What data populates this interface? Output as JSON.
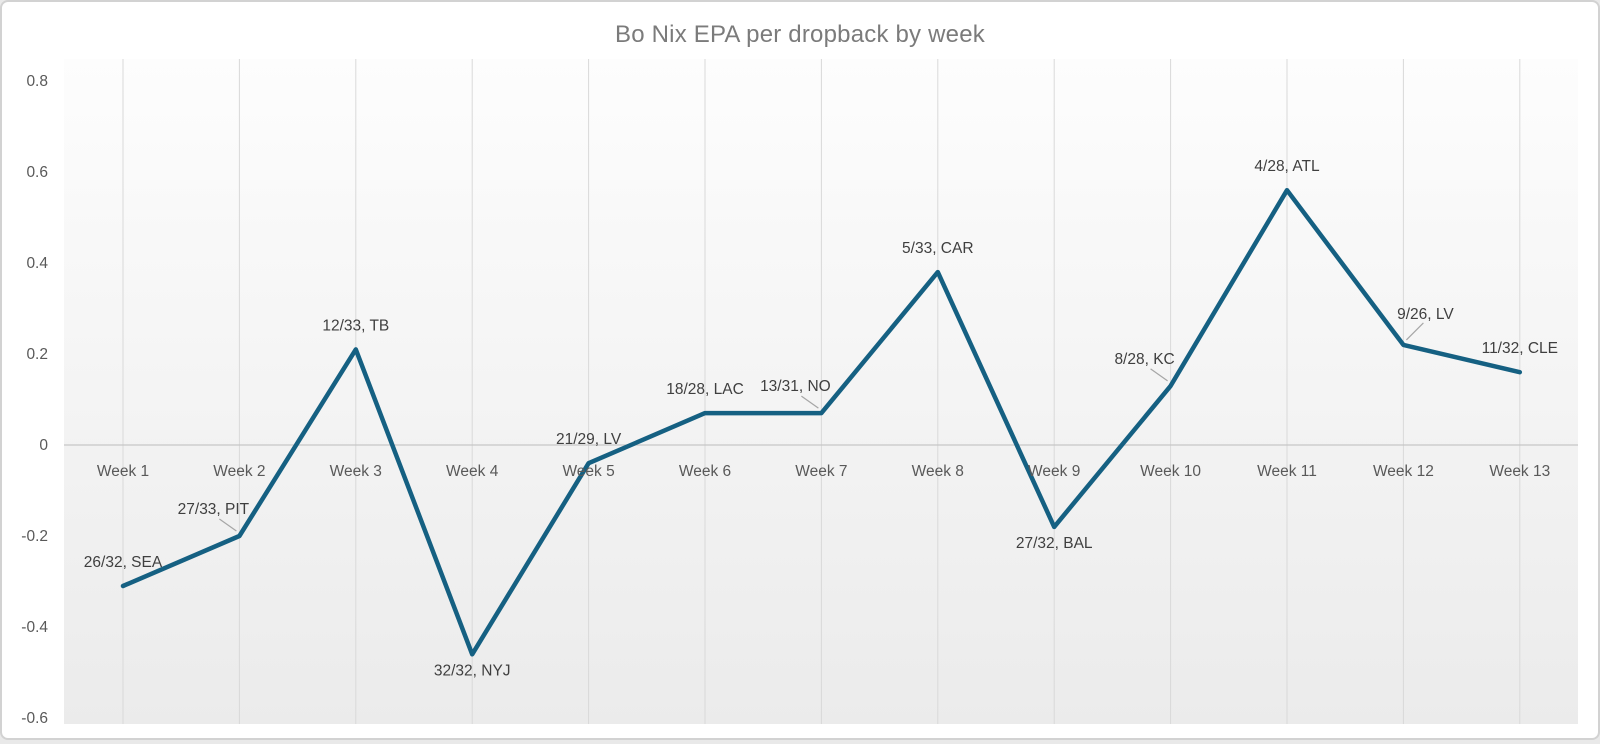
{
  "chart_data": {
    "type": "line",
    "title": "Bo Nix EPA per dropback by week",
    "xlabel": "",
    "ylabel": "",
    "categories": [
      "Week 1",
      "Week 2",
      "Week 3",
      "Week 4",
      "Week 5",
      "Week 6",
      "Week 7",
      "Week 8",
      "Week 9",
      "Week 10",
      "Week 11",
      "Week 12",
      "Week 13"
    ],
    "values": [
      -0.31,
      -0.2,
      0.21,
      -0.46,
      -0.04,
      0.07,
      0.07,
      0.38,
      -0.18,
      0.13,
      0.56,
      0.22,
      0.16
    ],
    "point_labels": [
      "26/32, SEA",
      "27/33, PIT",
      "12/33, TB",
      "32/32, NYJ",
      "21/29, LV",
      "18/28, LAC",
      "13/31, NO",
      "5/33, CAR",
      "27/32, BAL",
      "8/28, KC",
      "4/28, ATL",
      "9/26, LV",
      "11/32, CLE"
    ],
    "label_placement": [
      "above",
      "leader-left",
      "above",
      "below",
      "above",
      "above",
      "leader-left",
      "above",
      "below",
      "leader-left",
      "above",
      "leader-right",
      "above"
    ],
    "y_ticks": [
      "0.8",
      "0.6",
      "0.4",
      "0.2",
      "0",
      "-0.2",
      "-0.4",
      "-0.6"
    ],
    "y_tick_values": [
      0.8,
      0.6,
      0.4,
      0.2,
      0,
      -0.2,
      -0.4,
      -0.6
    ],
    "ylim": [
      -0.6,
      0.8
    ],
    "grid": {
      "vertical": true,
      "horizontal": false
    },
    "legend": {
      "shown": false
    },
    "colors": {
      "line": "#156082",
      "gridline": "#d9d9d9",
      "axis_line": "#c6c6c6",
      "leader_line": "#a6a6a6",
      "title_text": "#7b7b7b",
      "axis_text": "#595959",
      "point_label_text": "#3f3f3f",
      "plot_bg_top": "#fdfdfd",
      "plot_bg_bottom": "#ebebeb"
    }
  }
}
